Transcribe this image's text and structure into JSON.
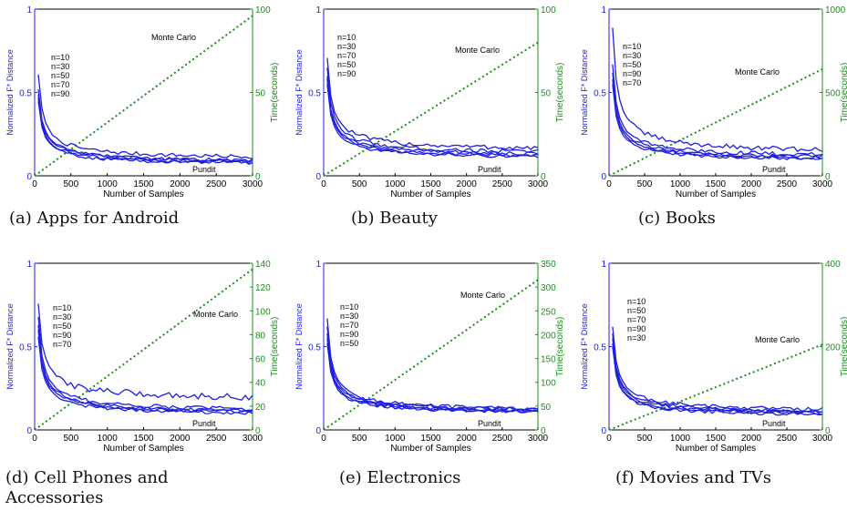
{
  "colors": {
    "distance": "#1f1fe0",
    "time": "#1a8f1a",
    "axis": "#000000"
  },
  "common": {
    "xlabel": "Number of Samples",
    "ylabel_left": "Normalized F* Distance",
    "ylabel_right": "Time(seconds)",
    "mc_label": "Monte Carlo",
    "pundit_label": "Pundit",
    "x_ticks": [
      0,
      500,
      1000,
      1500,
      2000,
      2500,
      3000
    ],
    "y_ticks": [
      0,
      0.5,
      1
    ]
  },
  "chart_data": [
    {
      "type": "line",
      "caption": "(a) Apps for Android",
      "xlim": [
        0,
        3000
      ],
      "ylim": [
        0,
        1
      ],
      "y2lim": [
        0,
        100
      ],
      "y2_ticks": [
        0,
        50,
        100
      ],
      "legend": [
        "n=10",
        "n=30",
        "n=50",
        "n=70",
        "n=90"
      ],
      "series": [
        {
          "y0": 0.61,
          "final": 0.09,
          "amp": 0.012
        },
        {
          "y0": 0.52,
          "final": 0.07,
          "amp": 0.01
        },
        {
          "y0": 0.49,
          "final": 0.075,
          "amp": 0.01
        },
        {
          "y0": 0.47,
          "final": 0.065,
          "amp": 0.01
        },
        {
          "y0": 0.45,
          "final": 0.06,
          "amp": 0.01
        }
      ],
      "time_series": {
        "name": "Monte Carlo",
        "end_value": 96
      }
    },
    {
      "type": "line",
      "caption": "(b) Beauty",
      "xlim": [
        0,
        3000
      ],
      "ylim": [
        0,
        1
      ],
      "y2lim": [
        0,
        100
      ],
      "y2_ticks": [
        0,
        50,
        100
      ],
      "legend": [
        "n=10",
        "n=30",
        "n=70",
        "n=50",
        "n=90"
      ],
      "series": [
        {
          "y0": 0.71,
          "final": 0.14,
          "amp": 0.014
        },
        {
          "y0": 0.65,
          "final": 0.12,
          "amp": 0.012
        },
        {
          "y0": 0.6,
          "final": 0.11,
          "amp": 0.01
        },
        {
          "y0": 0.58,
          "final": 0.1,
          "amp": 0.01
        },
        {
          "y0": 0.55,
          "final": 0.095,
          "amp": 0.01
        }
      ],
      "time_series": {
        "name": "Monte Carlo",
        "end_value": 80
      }
    },
    {
      "type": "line",
      "caption": "(c) Books",
      "xlim": [
        0,
        3000
      ],
      "ylim": [
        0,
        1
      ],
      "y2lim": [
        0,
        1000
      ],
      "y2_ticks": [
        0,
        500,
        1000
      ],
      "legend": [
        "n=10",
        "n=30",
        "n=50",
        "n=90",
        "n=70"
      ],
      "series": [
        {
          "y0": 0.89,
          "final": 0.12,
          "amp": 0.014
        },
        {
          "y0": 0.67,
          "final": 0.1,
          "amp": 0.012
        },
        {
          "y0": 0.62,
          "final": 0.09,
          "amp": 0.01
        },
        {
          "y0": 0.58,
          "final": 0.085,
          "amp": 0.01
        },
        {
          "y0": 0.55,
          "final": 0.08,
          "amp": 0.01
        }
      ],
      "time_series": {
        "name": "Monte Carlo",
        "end_value": 640
      }
    },
    {
      "type": "line",
      "caption": "(d) Cell Phones and Accessories",
      "xlim": [
        0,
        3000
      ],
      "ylim": [
        0,
        1
      ],
      "y2lim": [
        0,
        140
      ],
      "y2_ticks": [
        0,
        20,
        40,
        60,
        80,
        100,
        120,
        140
      ],
      "legend": [
        "n=10",
        "n=30",
        "n=50",
        "n=90",
        "n=70"
      ],
      "series": [
        {
          "y0": 0.76,
          "final": 0.17,
          "amp": 0.02
        },
        {
          "y0": 0.68,
          "final": 0.1,
          "amp": 0.012
        },
        {
          "y0": 0.63,
          "final": 0.09,
          "amp": 0.01
        },
        {
          "y0": 0.6,
          "final": 0.085,
          "amp": 0.01
        },
        {
          "y0": 0.56,
          "final": 0.08,
          "amp": 0.01
        }
      ],
      "time_series": {
        "name": "Monte Carlo",
        "end_value": 135
      }
    },
    {
      "type": "line",
      "caption": "(e) Electronics",
      "xlim": [
        0,
        3000
      ],
      "ylim": [
        0,
        1
      ],
      "y2lim": [
        0,
        350
      ],
      "y2_ticks": [
        0,
        50,
        100,
        150,
        200,
        250,
        300,
        350
      ],
      "legend": [
        "n=10",
        "n=30",
        "n=70",
        "n=90",
        "n=50"
      ],
      "series": [
        {
          "y0": 0.67,
          "final": 0.1,
          "amp": 0.012
        },
        {
          "y0": 0.62,
          "final": 0.1,
          "amp": 0.01
        },
        {
          "y0": 0.58,
          "final": 0.095,
          "amp": 0.01
        },
        {
          "y0": 0.55,
          "final": 0.09,
          "amp": 0.01
        },
        {
          "y0": 0.52,
          "final": 0.09,
          "amp": 0.01
        }
      ],
      "time_series": {
        "name": "Monte Carlo",
        "end_value": 315
      }
    },
    {
      "type": "line",
      "caption": "(f) Movies and TVs",
      "xlim": [
        0,
        3000
      ],
      "ylim": [
        0,
        1
      ],
      "y2lim": [
        0,
        400
      ],
      "y2_ticks": [
        0,
        200,
        400
      ],
      "legend": [
        "n=10",
        "n=50",
        "n=70",
        "n=90",
        "n=30"
      ],
      "series": [
        {
          "y0": 0.62,
          "final": 0.1,
          "amp": 0.012
        },
        {
          "y0": 0.58,
          "final": 0.09,
          "amp": 0.01
        },
        {
          "y0": 0.55,
          "final": 0.085,
          "amp": 0.01
        },
        {
          "y0": 0.52,
          "final": 0.08,
          "amp": 0.01
        },
        {
          "y0": 0.5,
          "final": 0.075,
          "amp": 0.01
        }
      ],
      "time_series": {
        "name": "Monte Carlo",
        "end_value": 205
      }
    }
  ]
}
